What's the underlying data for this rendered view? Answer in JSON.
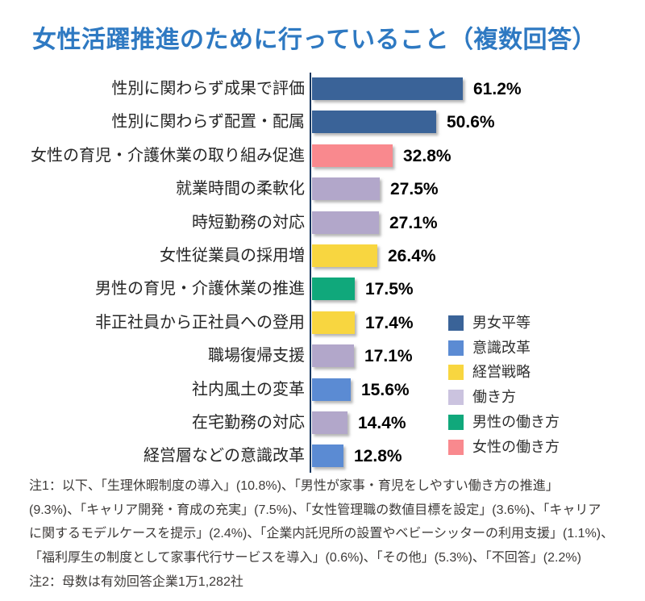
{
  "title": "女性活躍推進のために行っていること（複数回答）",
  "chart_data": {
    "type": "bar",
    "orientation": "horizontal",
    "unit": "%",
    "xlim": [
      0,
      65
    ],
    "grid": false,
    "bars": [
      {
        "label": "性別に関わらず成果で評価",
        "value": 61.2,
        "display": "61.2%",
        "group": "男女平等",
        "color": "#3a6398"
      },
      {
        "label": "性別に関わらず配置・配属",
        "value": 50.6,
        "display": "50.6%",
        "group": "男女平等",
        "color": "#3a6398"
      },
      {
        "label": "女性の育児・介護休業の取り組み促進",
        "value": 32.8,
        "display": "32.8%",
        "group": "女性の働き方",
        "color": "#f9898e"
      },
      {
        "label": "就業時間の柔軟化",
        "value": 27.5,
        "display": "27.5%",
        "group": "働き方",
        "color": "#b2a7ca"
      },
      {
        "label": "時短勤務の対応",
        "value": 27.1,
        "display": "27.1%",
        "group": "働き方",
        "color": "#b2a7ca"
      },
      {
        "label": "女性従業員の採用増",
        "value": 26.4,
        "display": "26.4%",
        "group": "経営戦略",
        "color": "#f8d640"
      },
      {
        "label": "男性の育児・介護休業の推進",
        "value": 17.5,
        "display": "17.5%",
        "group": "男性の働き方",
        "color": "#10a87b"
      },
      {
        "label": "非正社員から正社員への登用",
        "value": 17.4,
        "display": "17.4%",
        "group": "経営戦略",
        "color": "#f8d640"
      },
      {
        "label": "職場復帰支援",
        "value": 17.1,
        "display": "17.1%",
        "group": "働き方",
        "color": "#b2a7ca"
      },
      {
        "label": "社内風土の変革",
        "value": 15.6,
        "display": "15.6%",
        "group": "意識改革",
        "color": "#5b8bd3"
      },
      {
        "label": "在宅勤務の対応",
        "value": 14.4,
        "display": "14.4%",
        "group": "働き方",
        "color": "#b2a7ca"
      },
      {
        "label": "経営層などの意識改革",
        "value": 12.8,
        "display": "12.8%",
        "group": "意識改革",
        "color": "#5b8bd3"
      }
    ],
    "legend": {
      "position": "right-middle",
      "items": [
        {
          "label": "男女平等",
          "color": "#3a6398"
        },
        {
          "label": "意識改革",
          "color": "#5b8bd3"
        },
        {
          "label": "経営戦略",
          "color": "#f8d640"
        },
        {
          "label": "働き方",
          "color": "#cbc3df"
        },
        {
          "label": "男性の働き方",
          "color": "#10a87b"
        },
        {
          "label": "女性の働き方",
          "color": "#f9898e"
        }
      ]
    }
  },
  "notes": {
    "lines": [
      "注1：以下、「生理休暇制度の導入」(10.8%)、「男性が家事・育児をしやすい働き方の推進」",
      "(9.3%)、「キャリア開発・育成の充実」(7.5%)、「女性管理職の数値目標を設定」(3.6%)、「キャリア",
      "に関するモデルケースを提示」(2.4%)、「企業内託児所の設置やベビーシッターの利用支援」(1.1%)、",
      "「福利厚生の制度として家事代行サービスを導入」(0.6%)、「その他」(5.3%)、「不回答」(2.2%)",
      "注2：母数は有効回答企業1万1,282社"
    ]
  },
  "colors": {
    "title": "#2e79c2",
    "axis": "#17365d",
    "label_text": "#262626",
    "legend_text": "#2f2f2f",
    "note_text": "#3d3a38",
    "background": "#ffffff"
  }
}
